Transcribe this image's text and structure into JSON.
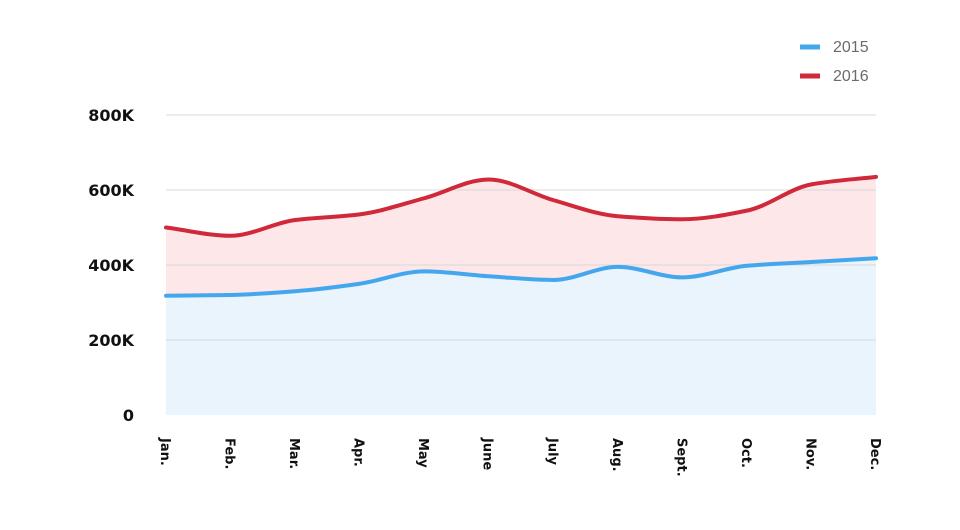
{
  "chart_data": {
    "type": "area",
    "categories": [
      "Jan.",
      "Feb.",
      "Mar.",
      "Apr.",
      "May",
      "June",
      "July",
      "Aug.",
      "Sept.",
      "Oct.",
      "Nov.",
      "Dec."
    ],
    "y_ticks": [
      "0",
      "200K",
      "400K",
      "600K",
      "800K"
    ],
    "ylim": [
      0,
      800000
    ],
    "grid": true,
    "legend_position": "top-right",
    "series": [
      {
        "name": "2015",
        "color": "#44a7ee",
        "fill": "#eaf4fc",
        "values": [
          318000,
          320000,
          330000,
          350000,
          383000,
          370000,
          360000,
          395000,
          367000,
          398000,
          408000,
          418000
        ]
      },
      {
        "name": "2016",
        "color": "#d0293a",
        "fill": "#fde7e8",
        "values": [
          500000,
          478000,
          520000,
          535000,
          578000,
          628000,
          573000,
          530000,
          522000,
          545000,
          615000,
          635000
        ]
      }
    ]
  }
}
